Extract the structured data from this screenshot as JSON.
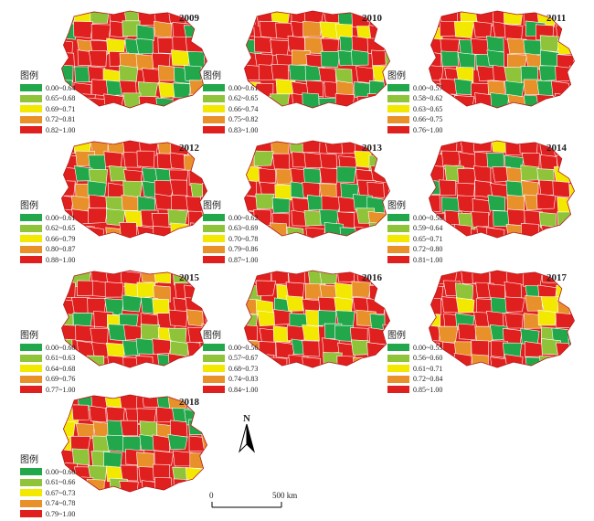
{
  "colors": {
    "c1": "#22a84a",
    "c2": "#8fc43a",
    "c3": "#f2e800",
    "c4": "#e8902a",
    "c5": "#e0201e"
  },
  "legend_title": "图例",
  "panels": [
    {
      "year": "2009",
      "ranges": [
        "0.00~0.64",
        "0.65~0.68",
        "0.69~0.71",
        "0.72~0.81",
        "0.82~1.00"
      ]
    },
    {
      "year": "2010",
      "ranges": [
        "0.00~0.61",
        "0.62~0.65",
        "0.66~0.74",
        "0.75~0.82",
        "0.83~1.00"
      ]
    },
    {
      "year": "2011",
      "ranges": [
        "0.00~0.57",
        "0.58~0.62",
        "0.63~0.65",
        "0.66~0.75",
        "0.76~1.00"
      ]
    },
    {
      "year": "2012",
      "ranges": [
        "0.00~0.61",
        "0.62~0.65",
        "0.66~0.79",
        "0.80~0.87",
        "0.88~1.00"
      ]
    },
    {
      "year": "2013",
      "ranges": [
        "0.00~0.62",
        "0.63~0.69",
        "0.70~0.78",
        "0.79~0.86",
        "0.87~1.00"
      ]
    },
    {
      "year": "2014",
      "ranges": [
        "0.00~0.58",
        "0.59~0.64",
        "0.65~0.71",
        "0.72~0.80",
        "0.81~1.00"
      ]
    },
    {
      "year": "2015",
      "ranges": [
        "0.00~0.60",
        "0.61~0.63",
        "0.64~0.68",
        "0.69~0.76",
        "0.77~1.00"
      ]
    },
    {
      "year": "2016",
      "ranges": [
        "0.00~0.56",
        "0.57~0.67",
        "0.68~0.73",
        "0.74~0.83",
        "0.84~1.00"
      ]
    },
    {
      "year": "2017",
      "ranges": [
        "0.00~0.55",
        "0.56~0.60",
        "0.61~0.71",
        "0.72~0.84",
        "0.85~1.00"
      ]
    },
    {
      "year": "2018",
      "ranges": [
        "0.00~0.60",
        "0.61~0.66",
        "0.67~0.73",
        "0.74~0.78",
        "0.79~1.00"
      ]
    }
  ],
  "north_label": "N",
  "scale": {
    "start": "0",
    "end": "500 km"
  }
}
